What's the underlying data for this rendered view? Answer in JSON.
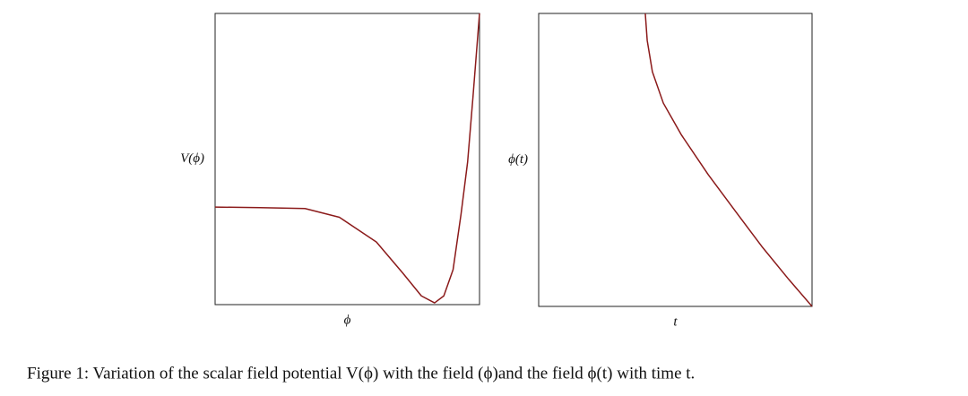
{
  "chart_data": [
    {
      "type": "line",
      "x_label": "ϕ",
      "y_label": "V(ϕ)",
      "x": [
        0,
        0.17,
        0.34,
        0.47,
        0.61,
        0.71,
        0.78,
        0.83,
        0.865,
        0.9,
        0.93,
        0.955,
        0.975,
        1
      ],
      "series": [
        {
          "color": "#8b1a1a",
          "values": [
            0.335,
            0.333,
            0.33,
            0.3,
            0.215,
            0.108,
            0.03,
            0.006,
            0.03,
            0.12,
            0.31,
            0.49,
            0.71,
            1
          ]
        }
      ],
      "xlim": [
        0,
        1
      ],
      "ylim": [
        0,
        1
      ]
    },
    {
      "type": "line",
      "x_label": "t",
      "y_label": "ϕ(t)",
      "x": [
        0.39,
        0.397,
        0.416,
        0.456,
        0.521,
        0.62,
        0.718,
        0.816,
        0.915,
        1
      ],
      "series": [
        {
          "color": "#8b1a1a",
          "values": [
            1,
            0.908,
            0.801,
            0.694,
            0.587,
            0.45,
            0.327,
            0.205,
            0.092,
            0
          ]
        }
      ],
      "xlim": [
        0,
        1
      ],
      "ylim": [
        0,
        1
      ]
    }
  ],
  "caption": "Figure 1: Variation of the scalar field potential V(ϕ) with the field (ϕ)and the field ϕ(t) with time t."
}
